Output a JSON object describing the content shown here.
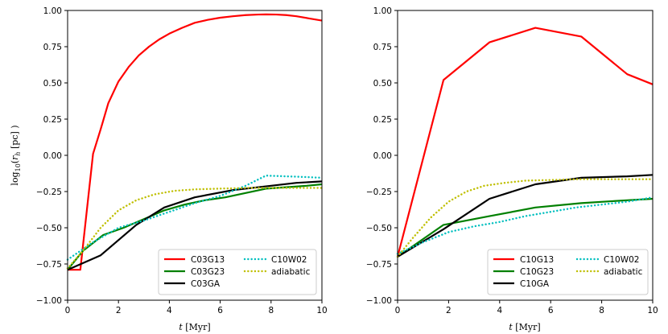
{
  "chart_data": [
    {
      "type": "line",
      "title": "",
      "xlabel": "t [Myr]",
      "ylabel": "log10(r_h [pc])",
      "xlim": [
        0,
        10
      ],
      "ylim": [
        -1.0,
        1.0
      ],
      "xticks": [
        "0",
        "2",
        "4",
        "6",
        "8",
        "10"
      ],
      "yticks": [
        "−1.00",
        "−0.75",
        "−0.50",
        "−0.25",
        "0.00",
        "0.25",
        "0.50",
        "0.75",
        "1.00"
      ],
      "grid": false,
      "legend_position": "lower-right",
      "legend_order": [
        "C03G13",
        "C03G23",
        "C03GA",
        "C10W02",
        "adiabatic"
      ],
      "series": [
        {
          "name": "C03G13",
          "color": "#ff0000",
          "style": "solid",
          "x": [
            0,
            0.5,
            1.0,
            1.3,
            1.6,
            2.0,
            2.4,
            2.8,
            3.2,
            3.6,
            4.0,
            4.5,
            5.0,
            5.5,
            6.0,
            6.5,
            7.0,
            7.5,
            7.8,
            8.2,
            8.6,
            9.0,
            9.5,
            10.0
          ],
          "y": [
            -0.79,
            -0.79,
            0.01,
            0.18,
            0.36,
            0.51,
            0.61,
            0.69,
            0.75,
            0.8,
            0.84,
            0.88,
            0.915,
            0.935,
            0.95,
            0.96,
            0.968,
            0.972,
            0.973,
            0.972,
            0.968,
            0.96,
            0.945,
            0.93
          ]
        },
        {
          "name": "C03G23",
          "color": "#008000",
          "style": "solid",
          "x": [
            0,
            0.6,
            1.4,
            2.2,
            3.0,
            3.8,
            4.6,
            5.4,
            6.2,
            7.0,
            7.8,
            8.6,
            9.4,
            10.0
          ],
          "y": [
            -0.79,
            -0.66,
            -0.55,
            -0.5,
            -0.44,
            -0.38,
            -0.34,
            -0.31,
            -0.29,
            -0.26,
            -0.23,
            -0.22,
            -0.21,
            -0.2
          ]
        },
        {
          "name": "C03GA",
          "color": "#000000",
          "style": "solid",
          "x": [
            0,
            1.3,
            2.7,
            3.8,
            5.0,
            6.5,
            8.0,
            9.0,
            10.0
          ],
          "y": [
            -0.79,
            -0.69,
            -0.48,
            -0.36,
            -0.29,
            -0.24,
            -0.21,
            -0.19,
            -0.18
          ]
        },
        {
          "name": "C10W02",
          "color": "#00bfbf",
          "style": "dotted",
          "x": [
            0,
            1.0,
            2.0,
            3.0,
            4.0,
            5.0,
            6.0,
            7.0,
            7.8,
            8.6,
            9.4,
            10.0
          ],
          "y": [
            -0.72,
            -0.6,
            -0.5,
            -0.45,
            -0.39,
            -0.33,
            -0.28,
            -0.21,
            -0.14,
            -0.145,
            -0.15,
            -0.155
          ]
        },
        {
          "name": "adiabatic",
          "color": "#bfbf00",
          "style": "dotted",
          "x": [
            0,
            0.6,
            1.3,
            2.0,
            2.7,
            3.4,
            4.2,
            5.0,
            6.0,
            7.0,
            8.0,
            9.0,
            10.0
          ],
          "y": [
            -0.78,
            -0.66,
            -0.5,
            -0.38,
            -0.31,
            -0.27,
            -0.245,
            -0.235,
            -0.23,
            -0.225,
            -0.225,
            -0.225,
            -0.225
          ]
        }
      ]
    },
    {
      "type": "line",
      "title": "",
      "xlabel": "t [Myr]",
      "ylabel": "",
      "xlim": [
        0,
        10
      ],
      "ylim": [
        -1.0,
        1.0
      ],
      "xticks": [
        "0",
        "2",
        "4",
        "6",
        "8",
        "10"
      ],
      "yticks": [
        "−1.00",
        "−0.75",
        "−0.50",
        "−0.25",
        "0.00",
        "0.25",
        "0.50",
        "0.75",
        "1.00"
      ],
      "grid": false,
      "legend_position": "lower-right",
      "legend_order": [
        "C10G13",
        "C10G23",
        "C10GA",
        "C10W02",
        "adiabatic"
      ],
      "series": [
        {
          "name": "C10G13",
          "color": "#ff0000",
          "style": "solid",
          "x": [
            0,
            1.8,
            3.6,
            5.4,
            7.2,
            9.0,
            10.0
          ],
          "y": [
            -0.7,
            0.52,
            0.78,
            0.88,
            0.82,
            0.56,
            0.49
          ]
        },
        {
          "name": "C10G23",
          "color": "#008000",
          "style": "solid",
          "x": [
            0,
            1.8,
            3.6,
            5.4,
            7.2,
            9.0,
            10.0
          ],
          "y": [
            -0.7,
            -0.48,
            -0.42,
            -0.36,
            -0.33,
            -0.31,
            -0.3
          ]
        },
        {
          "name": "C10GA",
          "color": "#000000",
          "style": "solid",
          "x": [
            0,
            1.8,
            3.6,
            5.4,
            7.2,
            9.0,
            10.0
          ],
          "y": [
            -0.7,
            -0.51,
            -0.3,
            -0.2,
            -0.155,
            -0.145,
            -0.135
          ]
        },
        {
          "name": "C10W02",
          "color": "#00bfbf",
          "style": "dotted",
          "x": [
            0,
            1.0,
            2.0,
            3.0,
            4.0,
            5.0,
            6.0,
            7.0,
            8.0,
            9.0,
            10.0
          ],
          "y": [
            -0.68,
            -0.6,
            -0.53,
            -0.49,
            -0.46,
            -0.42,
            -0.39,
            -0.36,
            -0.34,
            -0.32,
            -0.29
          ]
        },
        {
          "name": "adiabatic",
          "color": "#bfbf00",
          "style": "dotted",
          "x": [
            0,
            0.6,
            1.3,
            2.0,
            2.7,
            3.4,
            4.2,
            5.0,
            6.0,
            7.0,
            8.0,
            9.0,
            10.0
          ],
          "y": [
            -0.7,
            -0.57,
            -0.43,
            -0.32,
            -0.25,
            -0.21,
            -0.19,
            -0.175,
            -0.17,
            -0.165,
            -0.165,
            -0.165,
            -0.165
          ]
        }
      ]
    }
  ]
}
